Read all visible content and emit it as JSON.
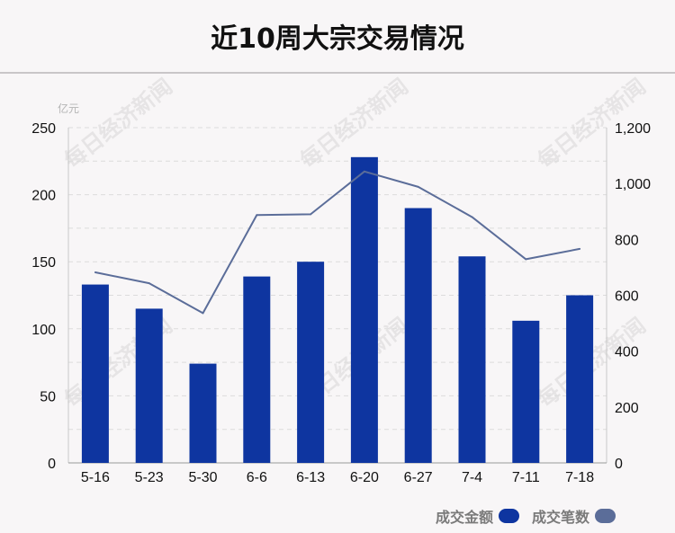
{
  "title": "近10周大宗交易情况",
  "watermark": "每日经济新闻",
  "colors": {
    "bar": "#0e35a0",
    "line": "#5b6d99",
    "grid": "#dcdcdc",
    "axis": "#c8c8c8"
  },
  "legend": [
    {
      "label": "成交金额",
      "color": "#0e35a0"
    },
    {
      "label": "成交笔数",
      "color": "#5b6d99"
    }
  ],
  "chart_data": {
    "type": "bar",
    "categories": [
      "5-16",
      "5-23",
      "5-30",
      "6-6",
      "6-13",
      "6-20",
      "6-27",
      "7-4",
      "7-11",
      "7-18"
    ],
    "ylabel_left": "亿元",
    "ylim_left": [
      0,
      250
    ],
    "yticks_left": [
      "0",
      "50",
      "100",
      "150",
      "200",
      "250"
    ],
    "ylim_right": [
      0,
      1200
    ],
    "yticks_right": [
      "0",
      "200",
      "400",
      "600",
      "800",
      "1,000",
      "1,200"
    ],
    "grid": true,
    "series": [
      {
        "name": "成交金额",
        "type": "bar",
        "axis": "left",
        "values": [
          133,
          115,
          74,
          139,
          150,
          228,
          190,
          154,
          106,
          125
        ]
      },
      {
        "name": "成交笔数",
        "type": "line",
        "axis": "right",
        "values": [
          682,
          643,
          536,
          887,
          890,
          1043,
          988,
          880,
          729,
          766
        ]
      }
    ]
  }
}
